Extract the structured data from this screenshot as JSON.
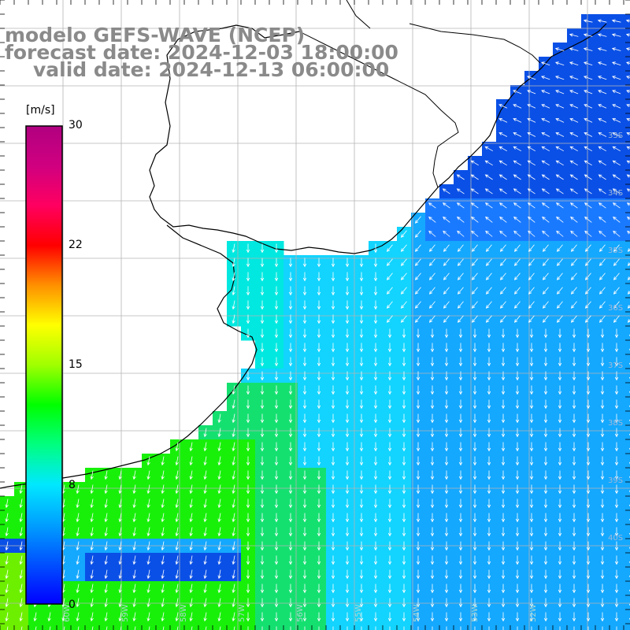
{
  "title": {
    "line1": "modelo GEFS-WAVE (NCEP)",
    "line2": "forecast date: 2024-12-03 18:00:00",
    "line3": "valid date: 2024-12-13 06:00:00"
  },
  "colorbar": {
    "unit": "[m/s]",
    "ticks": [
      "30",
      "22",
      "15",
      "8",
      "0"
    ],
    "min": 0,
    "max": 30,
    "colors": [
      "#0000ff",
      "#0050ff",
      "#00a0ff",
      "#00e8ff",
      "#00ff80",
      "#00ff00",
      "#a0ff00",
      "#ffff00",
      "#ff9000",
      "#ff0000",
      "#ff0060",
      "#d00080",
      "#b00080"
    ]
  },
  "map": {
    "land_color": "#ffffff",
    "grid_color": "#b4b4b4",
    "coastline_color": "#000000",
    "arrow_color": "#ffffff",
    "palette": {
      "deep_blue": "#0a50e6",
      "blue": "#1a7aff",
      "cyan_blue": "#14a8ff",
      "cyan": "#12d4ff",
      "aqua": "#00e8e0",
      "green": "#14e070",
      "bright_green": "#18f00a",
      "lime": "#6cf000"
    },
    "lat_labels": [
      "33S",
      "34S",
      "35S",
      "36S",
      "37S",
      "38S",
      "39S",
      "40S"
    ],
    "lon_labels": [
      "60W",
      "59W",
      "58W",
      "57W",
      "56W",
      "55W",
      "54W",
      "53W",
      "52W"
    ]
  }
}
